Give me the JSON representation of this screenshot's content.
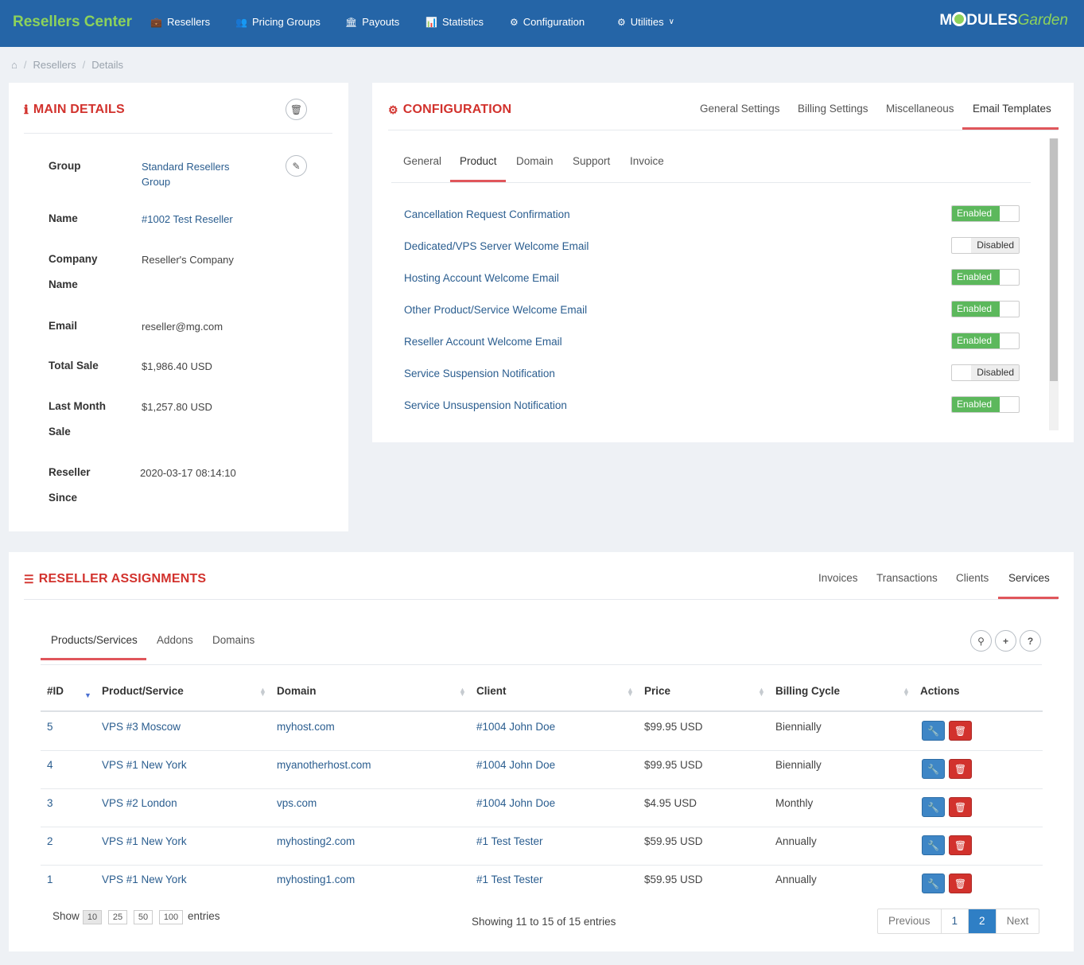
{
  "nav": {
    "brand": "Resellers Center",
    "items": [
      {
        "label": "Resellers",
        "icon": "briefcase-icon"
      },
      {
        "label": "Pricing Groups",
        "icon": "users-icon"
      },
      {
        "label": "Payouts",
        "icon": "bank-icon"
      },
      {
        "label": "Statistics",
        "icon": "bar-chart-icon"
      },
      {
        "label": "Configuration",
        "icon": "gears-icon"
      },
      {
        "label": "Utilities",
        "icon": "gear-icon"
      }
    ],
    "logo_main": "M",
    "logo_mid": "DULES",
    "logo_garden": "Garden"
  },
  "breadcrumb": {
    "items": [
      "Resellers",
      "Details"
    ]
  },
  "main_details": {
    "title": "MAIN DETAILS",
    "fields": [
      {
        "label": "Group",
        "value": "Standard Resellers Group"
      },
      {
        "label": "Name",
        "value": "#1002 Test Reseller"
      },
      {
        "label": "Company Name",
        "value": "Reseller's Company"
      },
      {
        "label": "Email",
        "value": "reseller@mg.com"
      },
      {
        "label": "Total Sale",
        "value": "$1,986.40 USD"
      },
      {
        "label": "Last Month Sale",
        "value": "$1,257.80 USD"
      },
      {
        "label": "Reseller Since",
        "value": "2020-03-17 08:14:10"
      }
    ]
  },
  "configuration": {
    "title": "CONFIGURATION",
    "tabs": [
      "General Settings",
      "Billing Settings",
      "Miscellaneous",
      "Email Templates"
    ],
    "subtabs": [
      "General",
      "Product",
      "Domain",
      "Support",
      "Invoice"
    ],
    "enabled_label": "Enabled",
    "disabled_label": "Disabled",
    "templates": [
      {
        "name": "Cancellation Request Confirmation",
        "enabled": true
      },
      {
        "name": "Dedicated/VPS Server Welcome Email",
        "enabled": false
      },
      {
        "name": "Hosting Account Welcome Email",
        "enabled": true
      },
      {
        "name": "Other Product/Service Welcome Email",
        "enabled": true
      },
      {
        "name": "Reseller Account Welcome Email",
        "enabled": true
      },
      {
        "name": "Service Suspension Notification",
        "enabled": false
      },
      {
        "name": "Service Unsuspension Notification",
        "enabled": true
      }
    ]
  },
  "assignments": {
    "title": "RESELLER ASSIGNMENTS",
    "tabs": [
      "Invoices",
      "Transactions",
      "Clients",
      "Services"
    ],
    "subtabs": [
      "Products/Services",
      "Addons",
      "Domains"
    ],
    "columns": [
      "#ID",
      "Product/Service",
      "Domain",
      "Client",
      "Price",
      "Billing Cycle",
      "Actions"
    ],
    "rows": [
      {
        "id": "5",
        "product": "VPS #3 Moscow",
        "domain": "myhost.com",
        "client": "#1004 John Doe",
        "price": "$99.95 USD",
        "cycle": "Biennially"
      },
      {
        "id": "4",
        "product": "VPS #1 New York",
        "domain": "myanotherhost.com",
        "client": "#1004 John Doe",
        "price": "$99.95 USD",
        "cycle": "Biennially"
      },
      {
        "id": "3",
        "product": "VPS #2 London",
        "domain": "vps.com",
        "client": "#1004 John Doe",
        "price": "$4.95 USD",
        "cycle": "Monthly"
      },
      {
        "id": "2",
        "product": "VPS #1 New York",
        "domain": "myhosting2.com",
        "client": "#1 Test Tester",
        "price": "$59.95 USD",
        "cycle": "Annually"
      },
      {
        "id": "1",
        "product": "VPS #1 New York",
        "domain": "myhosting1.com",
        "client": "#1 Test Tester",
        "price": "$59.95 USD",
        "cycle": "Annually"
      }
    ],
    "show_label": "Show",
    "entries_label": "entries",
    "page_sizes": [
      "10",
      "25",
      "50",
      "100"
    ],
    "info": "Showing 11 to 15 of 15 entries",
    "pager": {
      "previous": "Previous",
      "pages": [
        "1",
        "2"
      ],
      "next": "Next"
    }
  },
  "colors": {
    "nav_bg": "#2565a7",
    "brand_green": "#8dd25b",
    "title_red": "#d2322d",
    "tab_accent": "#e0565b",
    "enabled_green": "#5cb85c"
  }
}
